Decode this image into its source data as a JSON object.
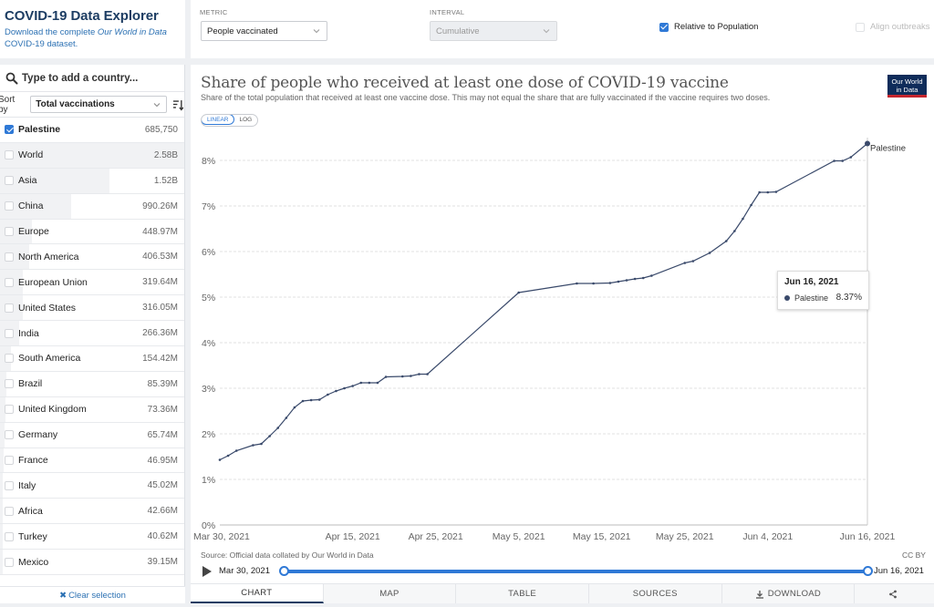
{
  "brand": {
    "title": "COVID-19 Data Explorer",
    "desc_prefix": "Download the complete ",
    "desc_italic": "Our World in Data",
    "desc_suffix": " COVID-19 dataset."
  },
  "sidebar": {
    "search_placeholder": "Type to add a country...",
    "sort_label": "Sort by",
    "sort_value": "Total vaccinations",
    "clear_label": "Clear selection",
    "items": [
      {
        "name": "Palestine",
        "value": "685,750",
        "selected": true,
        "share": 0.0
      },
      {
        "name": "World",
        "value": "2.58B",
        "selected": false,
        "share": 1.0
      },
      {
        "name": "Asia",
        "value": "1.52B",
        "selected": false,
        "share": 0.59
      },
      {
        "name": "China",
        "value": "990.26M",
        "selected": false,
        "share": 0.384
      },
      {
        "name": "Europe",
        "value": "448.97M",
        "selected": false,
        "share": 0.174
      },
      {
        "name": "North America",
        "value": "406.53M",
        "selected": false,
        "share": 0.158
      },
      {
        "name": "European Union",
        "value": "319.64M",
        "selected": false,
        "share": 0.124
      },
      {
        "name": "United States",
        "value": "316.05M",
        "selected": false,
        "share": 0.122
      },
      {
        "name": "India",
        "value": "266.36M",
        "selected": false,
        "share": 0.103
      },
      {
        "name": "South America",
        "value": "154.42M",
        "selected": false,
        "share": 0.06
      },
      {
        "name": "Brazil",
        "value": "85.39M",
        "selected": false,
        "share": 0.033
      },
      {
        "name": "United Kingdom",
        "value": "73.36M",
        "selected": false,
        "share": 0.028
      },
      {
        "name": "Germany",
        "value": "65.74M",
        "selected": false,
        "share": 0.025
      },
      {
        "name": "France",
        "value": "46.95M",
        "selected": false,
        "share": 0.018
      },
      {
        "name": "Italy",
        "value": "45.02M",
        "selected": false,
        "share": 0.017
      },
      {
        "name": "Africa",
        "value": "42.66M",
        "selected": false,
        "share": 0.017
      },
      {
        "name": "Turkey",
        "value": "40.62M",
        "selected": false,
        "share": 0.016
      },
      {
        "name": "Mexico",
        "value": "39.15M",
        "selected": false,
        "share": 0.015
      }
    ]
  },
  "controls": {
    "metric_label": "METRIC",
    "metric_value": "People vaccinated",
    "interval_label": "INTERVAL",
    "interval_value": "Cumulative",
    "relative_label": "Relative to Population",
    "relative_checked": true,
    "align_label": "Align outbreaks",
    "align_checked": false
  },
  "chart": {
    "title": "Share of people who received at least one dose of COVID-19 vaccine",
    "subtitle": "Share of the total population that received at least one vaccine dose. This may not equal the share that are fully vaccinated if the vaccine requires two doses.",
    "logo_line1": "Our World",
    "logo_line2": "in Data",
    "scale_linear": "LINEAR",
    "scale_log": "LOG",
    "source": "Source: Official data collated by Our World in Data",
    "license": "CC BY",
    "tooltip": {
      "date": "Jun 16, 2021",
      "series": "Palestine",
      "value": "8.37%"
    },
    "line_color": "#3a4a6b"
  },
  "chart_data": {
    "type": "line",
    "title": "Share of people who received at least one dose of COVID-19 vaccine",
    "ylabel": "",
    "ylim": [
      0,
      8.5
    ],
    "yticks": [
      "0%",
      "1%",
      "2%",
      "3%",
      "4%",
      "5%",
      "6%",
      "7%",
      "8%"
    ],
    "xticks": [
      "Mar 30, 2021",
      "Apr 15, 2021",
      "Apr 25, 2021",
      "May 5, 2021",
      "May 15, 2021",
      "May 25, 2021",
      "Jun 4, 2021",
      "Jun 16, 2021"
    ],
    "xtick_days": [
      0,
      16,
      26,
      36,
      46,
      56,
      66,
      78
    ],
    "xlim_days": [
      0,
      78
    ],
    "grid": true,
    "series": [
      {
        "name": "Palestine",
        "x": [
          0,
          1,
          2,
          4,
          5,
          6,
          7,
          8,
          9,
          10,
          11,
          12,
          13,
          14,
          15,
          16,
          17,
          18,
          19,
          20,
          22,
          23,
          24,
          25,
          36,
          43,
          45,
          47,
          48,
          49,
          50,
          51,
          52,
          56,
          57,
          59,
          61,
          62,
          63,
          64,
          65,
          66,
          67,
          74,
          75,
          76,
          78
        ],
        "y": [
          1.43,
          1.52,
          1.63,
          1.75,
          1.78,
          1.95,
          2.13,
          2.35,
          2.58,
          2.72,
          2.74,
          2.75,
          2.86,
          2.94,
          3.0,
          3.05,
          3.12,
          3.12,
          3.12,
          3.25,
          3.26,
          3.27,
          3.31,
          3.31,
          5.1,
          5.3,
          5.3,
          5.31,
          5.34,
          5.37,
          5.4,
          5.42,
          5.47,
          5.75,
          5.79,
          5.97,
          6.23,
          6.45,
          6.72,
          7.02,
          7.3,
          7.3,
          7.31,
          7.99,
          7.99,
          8.07,
          8.37
        ]
      }
    ]
  },
  "timeline": {
    "start": "Mar 30, 2021",
    "end": "Jun 16, 2021"
  },
  "tabs": [
    {
      "label": "CHART",
      "active": true,
      "icon": ""
    },
    {
      "label": "MAP",
      "active": false,
      "icon": ""
    },
    {
      "label": "TABLE",
      "active": false,
      "icon": ""
    },
    {
      "label": "SOURCES",
      "active": false,
      "icon": ""
    },
    {
      "label": "DOWNLOAD",
      "active": false,
      "icon": "download-icon"
    },
    {
      "label": "",
      "active": false,
      "icon": "share-icon"
    }
  ]
}
